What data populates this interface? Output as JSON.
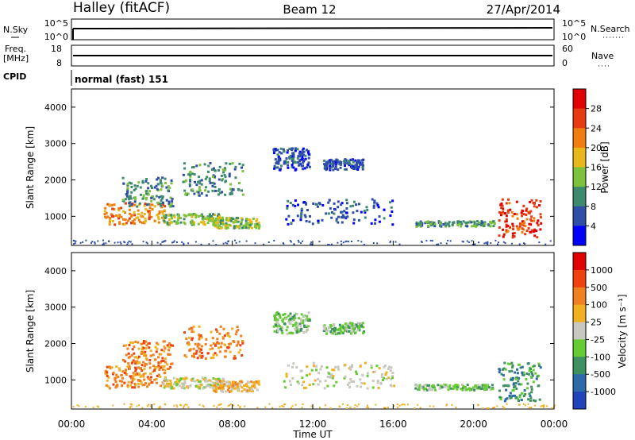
{
  "header": {
    "station": "Halley (fitACF)",
    "beam": "Beam 12",
    "date": "27/Apr/2014"
  },
  "top_panels": {
    "nsky_label": "N.Sky",
    "nsky_ticks": [
      "10^5",
      "10^0"
    ],
    "nsearch_label": "N.Search",
    "nsearch_ticks": [
      "10^5",
      "10^0"
    ],
    "freq_label_1": "Freq.",
    "freq_label_2": "[MHz]",
    "freq_ticks": [
      "18",
      "8"
    ],
    "nave_label": "Nave",
    "nave_ticks": [
      "60",
      "0"
    ],
    "cpid_label": "CPID",
    "cpid_value": "normal (fast) 151"
  },
  "chart_data": [
    {
      "type": "heatmap",
      "name": "power",
      "ylabel": "Slant Range [km]",
      "yticks": [
        "1000",
        "2000",
        "3000",
        "4000"
      ],
      "ylim": [
        200,
        4500
      ],
      "xlim": [
        0,
        24
      ],
      "colorbar_label": "Power [dB]",
      "colorbar_ticks": [
        "4",
        "8",
        "12",
        "16",
        "20",
        "24",
        "28"
      ],
      "colorbar_colors": [
        "#0000ff",
        "#2e4ea8",
        "#3d8a6e",
        "#7cc23a",
        "#e8b81a",
        "#f07d10",
        "#e83a10",
        "#e00000"
      ],
      "clusters": [
        {
          "t0": 1.6,
          "t1": 4.6,
          "r0": 800,
          "r1": 1400,
          "level": 5
        },
        {
          "t0": 2.5,
          "t1": 5.0,
          "r0": 1300,
          "r1": 2100,
          "level": 2
        },
        {
          "t0": 4.5,
          "t1": 7.5,
          "r0": 800,
          "r1": 1100,
          "level": 3
        },
        {
          "t0": 5.5,
          "t1": 8.5,
          "r0": 1600,
          "r1": 2500,
          "level": 2
        },
        {
          "t0": 7.0,
          "t1": 9.3,
          "r0": 700,
          "r1": 1000,
          "level": 3
        },
        {
          "t0": 10.0,
          "t1": 11.8,
          "r0": 2300,
          "r1": 2900,
          "level": 1
        },
        {
          "t0": 12.5,
          "t1": 14.5,
          "r0": 2300,
          "r1": 2600,
          "level": 1
        },
        {
          "t0": 10.5,
          "t1": 16.0,
          "r0": 800,
          "r1": 1500,
          "level": 1
        },
        {
          "t0": 17.0,
          "t1": 21.0,
          "r0": 750,
          "r1": 900,
          "level": 2
        },
        {
          "t0": 21.2,
          "t1": 23.3,
          "r0": 450,
          "r1": 1500,
          "level": 6
        }
      ]
    },
    {
      "type": "heatmap",
      "name": "velocity",
      "ylabel": "Slant Range [km]",
      "yticks": [
        "1000",
        "2000",
        "3000",
        "4000"
      ],
      "ylim": [
        200,
        4500
      ],
      "xlim": [
        0,
        24
      ],
      "xlabel": "Time UT",
      "xticks": [
        "00:00",
        "04:00",
        "08:00",
        "12:00",
        "16:00",
        "20:00",
        "00:00"
      ],
      "colorbar_label": "Velocity [m s⁻¹]",
      "colorbar_ticks": [
        "1000",
        "500",
        "100",
        "25",
        "-25",
        "-100",
        "-500",
        "-1000"
      ],
      "colorbar_colors": [
        "#2244bb",
        "#2f6aa8",
        "#3d9060",
        "#66cc33",
        "#c8c8c0",
        "#f0b020",
        "#f08020",
        "#f04010",
        "#e00000"
      ],
      "clusters": [
        {
          "t0": 1.6,
          "t1": 4.6,
          "r0": 800,
          "r1": 1400,
          "level": 6
        },
        {
          "t0": 2.5,
          "t1": 5.0,
          "r0": 1300,
          "r1": 2100,
          "level": 6
        },
        {
          "t0": 4.5,
          "t1": 7.5,
          "r0": 800,
          "r1": 1100,
          "level": 4
        },
        {
          "t0": 5.5,
          "t1": 8.5,
          "r0": 1600,
          "r1": 2500,
          "level": 6
        },
        {
          "t0": 7.0,
          "t1": 9.3,
          "r0": 700,
          "r1": 1000,
          "level": 5
        },
        {
          "t0": 10.0,
          "t1": 11.8,
          "r0": 2300,
          "r1": 2900,
          "level": 3
        },
        {
          "t0": 12.5,
          "t1": 14.5,
          "r0": 2300,
          "r1": 2600,
          "level": 3
        },
        {
          "t0": 10.5,
          "t1": 16.0,
          "r0": 800,
          "r1": 1500,
          "level": 4
        },
        {
          "t0": 17.0,
          "t1": 21.0,
          "r0": 750,
          "r1": 900,
          "level": 3
        },
        {
          "t0": 21.2,
          "t1": 23.3,
          "r0": 450,
          "r1": 1500,
          "level": 2
        }
      ]
    }
  ]
}
